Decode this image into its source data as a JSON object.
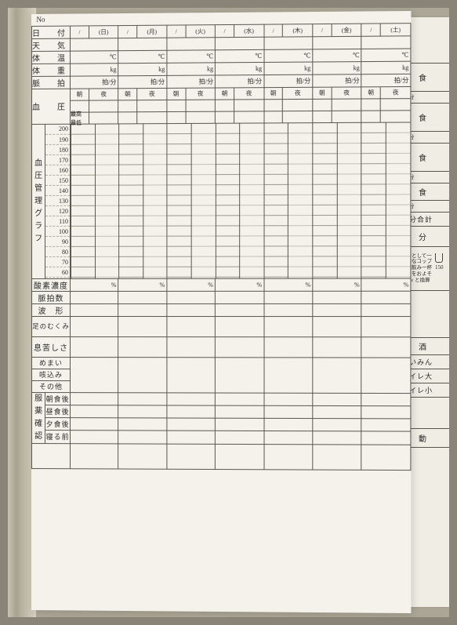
{
  "page_no_label": "No",
  "days": [
    "(日)",
    "(月)",
    "(火)",
    "(水)",
    "(木)",
    "(金)",
    "(土)"
  ],
  "date_label": "日　付",
  "slash": "/",
  "weather_label": "天　気",
  "temp_label": "体　温",
  "temp_unit": "℃",
  "weight_label": "体　重",
  "weight_unit": "kg",
  "pulse_label": "脈　拍",
  "pulse_unit": "拍/分",
  "bp_label": "血　圧",
  "morning": "朝",
  "night": "夜",
  "bp_max": "最高",
  "bp_min": "最低",
  "graph_label": "血圧管理グラフ",
  "scale": [
    "200",
    "190",
    "180",
    "170",
    "160",
    "150",
    "140",
    "130",
    "120",
    "110",
    "100",
    "90",
    "80",
    "70",
    "60"
  ],
  "oxygen_label": "酸素濃度",
  "pct": "%",
  "pulse_count": "脈拍数",
  "pulse_wave": "波　形",
  "foot_swell": "足のむくみ",
  "breath": "息苦しさ",
  "dizzy": "めまい",
  "cough": "咳込み",
  "other": "その他",
  "med_label": "服薬確認",
  "after_breakfast": "朝食後",
  "after_lunch": "昼食後",
  "after_dinner": "夕食後",
  "before_sleep": "寝る前",
  "side": {
    "breakfast": "朝　食",
    "salt": "(塩分",
    "lunch": "昼　食",
    "dinner": "夕　食",
    "snack": "間　食",
    "salt_total": "塩分合計",
    "water": "水　分",
    "cup_note1": "目安として一",
    "cup_note2": "般的なコップ",
    "cup_note3": "や湯飲み一杯",
    "cup_note4": "の量をおよそ",
    "cup_note5": "150cc と換算",
    "cup_150": "150",
    "eq": "=",
    "other_lbl": "その他",
    "total_lbl": "合計",
    "alcohol": "飲　酒",
    "sleep": "すいみん",
    "toilet_big": "トイレ大",
    "toilet_small": "トイレ小",
    "exercise": "運　動"
  },
  "colors": {
    "page_bg": "#f4f2ea",
    "line": "#5a5750",
    "text": "#2a2a2a"
  }
}
